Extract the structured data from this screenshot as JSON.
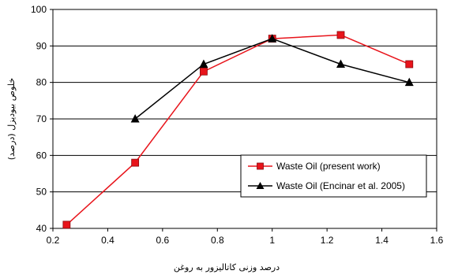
{
  "chart_data": {
    "type": "line",
    "xlabel": "درصد وزنی کاتالیزور به روغن",
    "ylabel": "خلوص بیودیزل (درصد)",
    "xlim": [
      0.2,
      1.6
    ],
    "ylim": [
      40,
      100
    ],
    "xticks": [
      "0.2",
      "0.4",
      "0.6",
      "0.8",
      "1",
      "1.2",
      "1.4",
      "1.6"
    ],
    "yticks": [
      "40",
      "50",
      "60",
      "70",
      "80",
      "90",
      "100"
    ],
    "grid": "horizontal",
    "legend_position": "bottom-right",
    "series": [
      {
        "name": "Waste Oil (present work)",
        "color": "#e8141b",
        "marker": "square",
        "x": [
          0.25,
          0.5,
          0.75,
          1.0,
          1.25,
          1.5
        ],
        "y": [
          41,
          58,
          83,
          92,
          93,
          85
        ]
      },
      {
        "name": "Waste Oil (Encinar et al. 2005)",
        "color": "#000000",
        "marker": "triangle",
        "x": [
          0.5,
          0.75,
          1.0,
          1.25,
          1.5
        ],
        "y": [
          70,
          85,
          92,
          85,
          80
        ]
      }
    ]
  }
}
